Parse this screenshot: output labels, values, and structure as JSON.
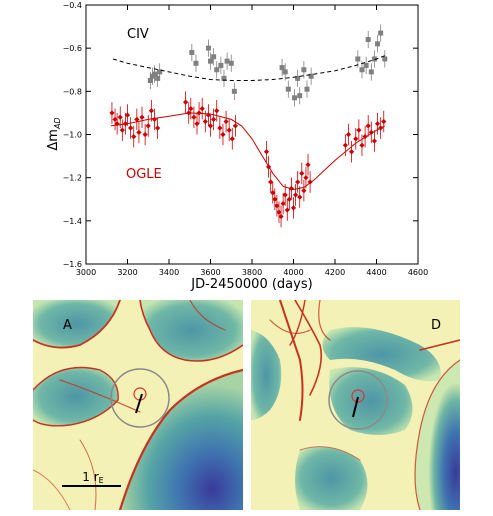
{
  "chart_data": [
    {
      "type": "scatter",
      "xlabel": "JD-2450000 (days)",
      "ylabel": "Δm",
      "ylabel_sub": "AD",
      "xlim": [
        3000,
        4600
      ],
      "ylim": [
        -1.6,
        -0.4
      ],
      "x_ticks": [
        "3000",
        "3200",
        "3400",
        "3600",
        "3800",
        "4000",
        "4200",
        "4400",
        "4600"
      ],
      "y_ticks": [
        "−0.4",
        "−0.6",
        "−0.8",
        "−1.0",
        "−1.2",
        "−1.4",
        "−1.6"
      ],
      "grid": false,
      "series": [
        {
          "name": "CIV",
          "marker": "square",
          "color": "#808080",
          "x": [
            3310,
            3320,
            3330,
            3345,
            3355,
            3510,
            3530,
            3590,
            3600,
            3615,
            3630,
            3650,
            3665,
            3680,
            3700,
            3715,
            3945,
            3960,
            3975,
            4005,
            4020,
            4030,
            4050,
            4065,
            4085,
            4310,
            4330,
            4350,
            4360,
            4375,
            4390,
            4405,
            4420,
            4440
          ],
          "y": [
            -0.75,
            -0.73,
            -0.72,
            -0.74,
            -0.71,
            -0.62,
            -0.67,
            -0.6,
            -0.66,
            -0.64,
            -0.7,
            -0.68,
            -0.74,
            -0.66,
            -0.67,
            -0.8,
            -0.69,
            -0.71,
            -0.79,
            -0.83,
            -0.74,
            -0.82,
            -0.7,
            -0.79,
            -0.73,
            -0.65,
            -0.7,
            -0.68,
            -0.56,
            -0.71,
            -0.65,
            -0.58,
            -0.53,
            -0.65
          ],
          "yerr": 0.04
        },
        {
          "name": "CIV-fit",
          "style": "dashed",
          "color": "#000000",
          "x": [
            3130,
            3200,
            3300,
            3400,
            3500,
            3600,
            3700,
            3800,
            3900,
            4000,
            4100,
            4200,
            4300,
            4400,
            4440
          ],
          "y": [
            -0.65,
            -0.67,
            -0.69,
            -0.71,
            -0.73,
            -0.745,
            -0.75,
            -0.75,
            -0.745,
            -0.735,
            -0.72,
            -0.705,
            -0.68,
            -0.65,
            -0.635
          ]
        },
        {
          "name": "OGLE",
          "marker": "diamond",
          "color": "#cc0000",
          "x": [
            3125,
            3140,
            3150,
            3165,
            3175,
            3190,
            3200,
            3215,
            3230,
            3245,
            3255,
            3270,
            3285,
            3300,
            3315,
            3330,
            3345,
            3480,
            3495,
            3505,
            3520,
            3535,
            3545,
            3560,
            3575,
            3590,
            3600,
            3615,
            3630,
            3645,
            3660,
            3675,
            3690,
            3705,
            3720,
            3870,
            3880,
            3890,
            3900,
            3910,
            3920,
            3930,
            3940,
            3950,
            3960,
            3970,
            3980,
            3990,
            4000,
            4010,
            4020,
            4030,
            4040,
            4050,
            4060,
            4070,
            4080,
            4250,
            4265,
            4280,
            4300,
            4315,
            4330,
            4345,
            4360,
            4375,
            4390,
            4405,
            4420,
            4435
          ],
          "y": [
            -0.9,
            -0.93,
            -0.95,
            -0.92,
            -0.98,
            -0.95,
            -0.91,
            -0.97,
            -1.01,
            -0.93,
            -0.99,
            -0.92,
            -1.0,
            -0.96,
            -0.89,
            -0.93,
            -0.97,
            -0.85,
            -0.9,
            -0.88,
            -0.92,
            -0.95,
            -0.9,
            -0.88,
            -0.94,
            -0.91,
            -0.96,
            -0.93,
            -0.89,
            -0.97,
            -1.0,
            -0.94,
            -0.98,
            -1.02,
            -0.96,
            -1.08,
            -1.15,
            -1.22,
            -1.27,
            -1.3,
            -1.33,
            -1.36,
            -1.38,
            -1.32,
            -1.28,
            -1.35,
            -1.3,
            -1.25,
            -1.34,
            -1.28,
            -1.22,
            -1.29,
            -1.18,
            -1.26,
            -1.2,
            -1.14,
            -1.22,
            -1.05,
            -1.0,
            -1.08,
            -1.02,
            -0.98,
            -1.05,
            -1.01,
            -0.96,
            -0.99,
            -1.03,
            -0.95,
            -0.97,
            -0.94
          ],
          "yerr": 0.05
        },
        {
          "name": "OGLE-fit",
          "style": "solid",
          "color": "#cc0000",
          "x": [
            3120,
            3200,
            3300,
            3400,
            3500,
            3600,
            3700,
            3750,
            3800,
            3850,
            3900,
            3950,
            4000,
            4050,
            4100,
            4200,
            4300,
            4400,
            4440
          ],
          "y": [
            -0.96,
            -0.95,
            -0.93,
            -0.915,
            -0.9,
            -0.905,
            -0.93,
            -0.96,
            -1.02,
            -1.1,
            -1.18,
            -1.24,
            -1.255,
            -1.245,
            -1.21,
            -1.12,
            -1.04,
            -0.98,
            -0.96
          ]
        }
      ],
      "annotations": [
        {
          "text": "CIV",
          "color": "#000000"
        },
        {
          "text": "OGLE",
          "color": "#cc0000"
        }
      ]
    },
    {
      "type": "heatmap",
      "panels": [
        {
          "label": "A",
          "scale_bar_label": "1 r",
          "scale_bar_sub": "E"
        },
        {
          "label": "D"
        }
      ],
      "colormap": "yellow-green-blue with red caustic ridges",
      "colors": {
        "low": "#3a3a9a",
        "mid": "#4f9aa8",
        "high": "#f3f1b6",
        "caustic": "#c8321e",
        "ring": "#8a8a8a",
        "marker": "#e03030"
      }
    }
  ]
}
